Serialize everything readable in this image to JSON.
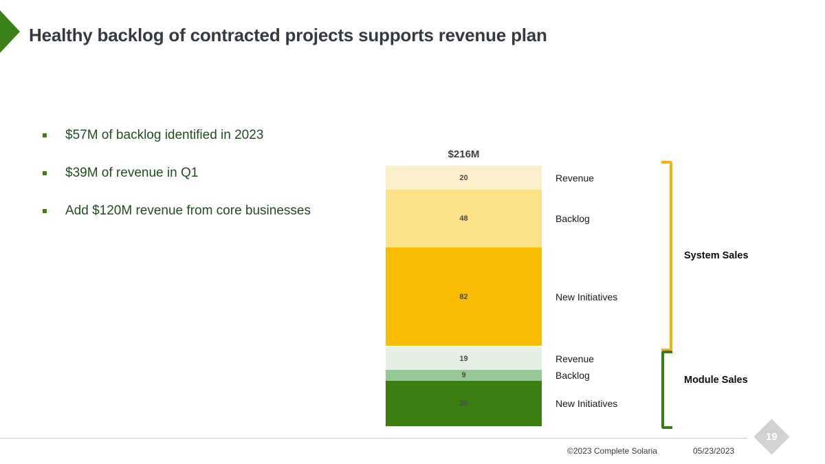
{
  "title": "Healthy backlog of contracted projects supports revenue plan",
  "bullets": [
    "$57M of backlog identified in 2023",
    "$39M of revenue in Q1",
    "Add $120M revenue from core businesses"
  ],
  "colors": {
    "accent_green": "#3C801A",
    "bullet_text_green": "#1F4E1F",
    "title_text": "#333A42",
    "footer_divider": "#C9C9C9",
    "page_badge": "#D2D2D2"
  },
  "chart_data": {
    "type": "bar",
    "stacked": true,
    "orientation": "single vertical stacked bar",
    "title": "",
    "total_label": "$216M",
    "total_value": 216,
    "unit": "$M",
    "legend_position": "right-of-bar",
    "groups": [
      {
        "name": "System Sales",
        "bracket_color": "#F2B40C",
        "segments": [
          {
            "label": "Revenue",
            "value": 20,
            "color": "#FCF0CB"
          },
          {
            "label": "Backlog",
            "value": 48,
            "color": "#FBE289"
          },
          {
            "label": "New Initiatives",
            "value": 82,
            "color": "#F8BC03"
          }
        ]
      },
      {
        "name": "Module Sales",
        "bracket_color": "#3A7D14",
        "segments": [
          {
            "label": "Revenue",
            "value": 19,
            "color": "#E5F0E5"
          },
          {
            "label": "Backlog",
            "value": 9,
            "color": "#96C897"
          },
          {
            "label": "New Initiatives",
            "value": 38,
            "color": "#3A7D11"
          }
        ]
      }
    ]
  },
  "footer": {
    "copyright": "©2023 Complete Solaria",
    "date": "05/23/2023",
    "page_number": "19"
  }
}
